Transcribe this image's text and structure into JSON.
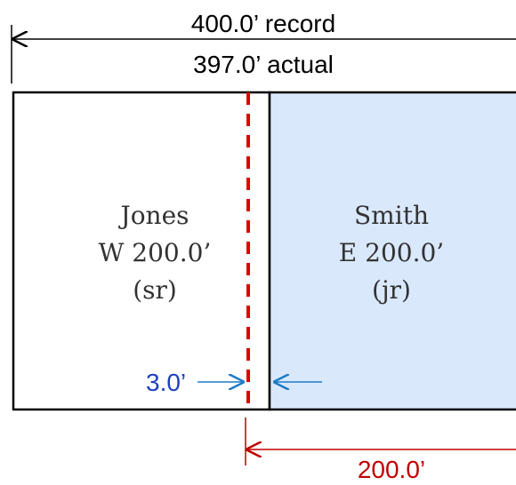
{
  "dimensions": {
    "record_label": "400.0’ record",
    "actual_label": "397.0’ actual"
  },
  "parcels": {
    "west": {
      "owner": "Jones",
      "description": "W 200.0’",
      "tag": "(sr)"
    },
    "east": {
      "owner": "Smith",
      "description": "E 200.0’",
      "tag": "(jr)"
    }
  },
  "annotations": {
    "gap_label": "3.0’",
    "east_measure_label": "200.0’"
  },
  "colors": {
    "outline": "#000000",
    "east_fill": "#dae8fc",
    "west_fill": "#ffffff",
    "red_line": "#e00000",
    "gap_arrow": "#1c7cc6",
    "gap_text": "#1f3fbf",
    "measure_line": "#c00000",
    "measure_text": "#c00000"
  }
}
